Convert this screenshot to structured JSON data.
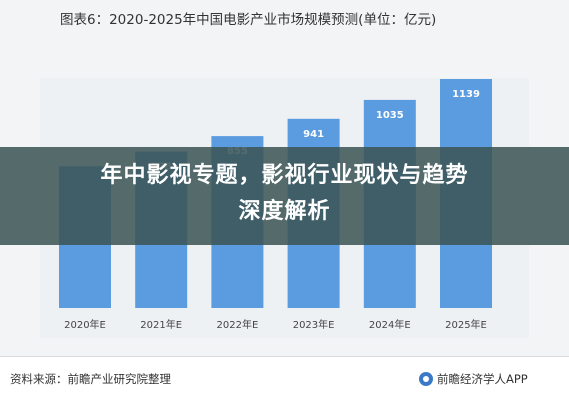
{
  "overlay": {
    "title_line1": "年中影视专题，影视行业现状与趋势",
    "title_line2": "深度解析"
  },
  "footer": {
    "source": "资料来源：前瞻产业研究院整理",
    "brand": "前瞻经济学人APP"
  },
  "colors": {
    "bar": "#5b9be0",
    "overlay": "#3a5454"
  },
  "chart_data": {
    "type": "bar",
    "title": "图表6：2020-2025年中国电影产业市场规模预测(单位：亿元)",
    "categories": [
      "2020年E",
      "2021年E",
      "2022年E",
      "2023年E",
      "2024年E",
      "2025年E"
    ],
    "values": [
      705,
      778,
      855,
      941,
      1035,
      1139
    ],
    "value_labels": [
      "",
      "778",
      "855",
      "941",
      "1035",
      "1139"
    ],
    "xlabel": "",
    "ylabel": "",
    "ylim": [
      0,
      1200
    ],
    "grid": false,
    "legend": "none"
  }
}
